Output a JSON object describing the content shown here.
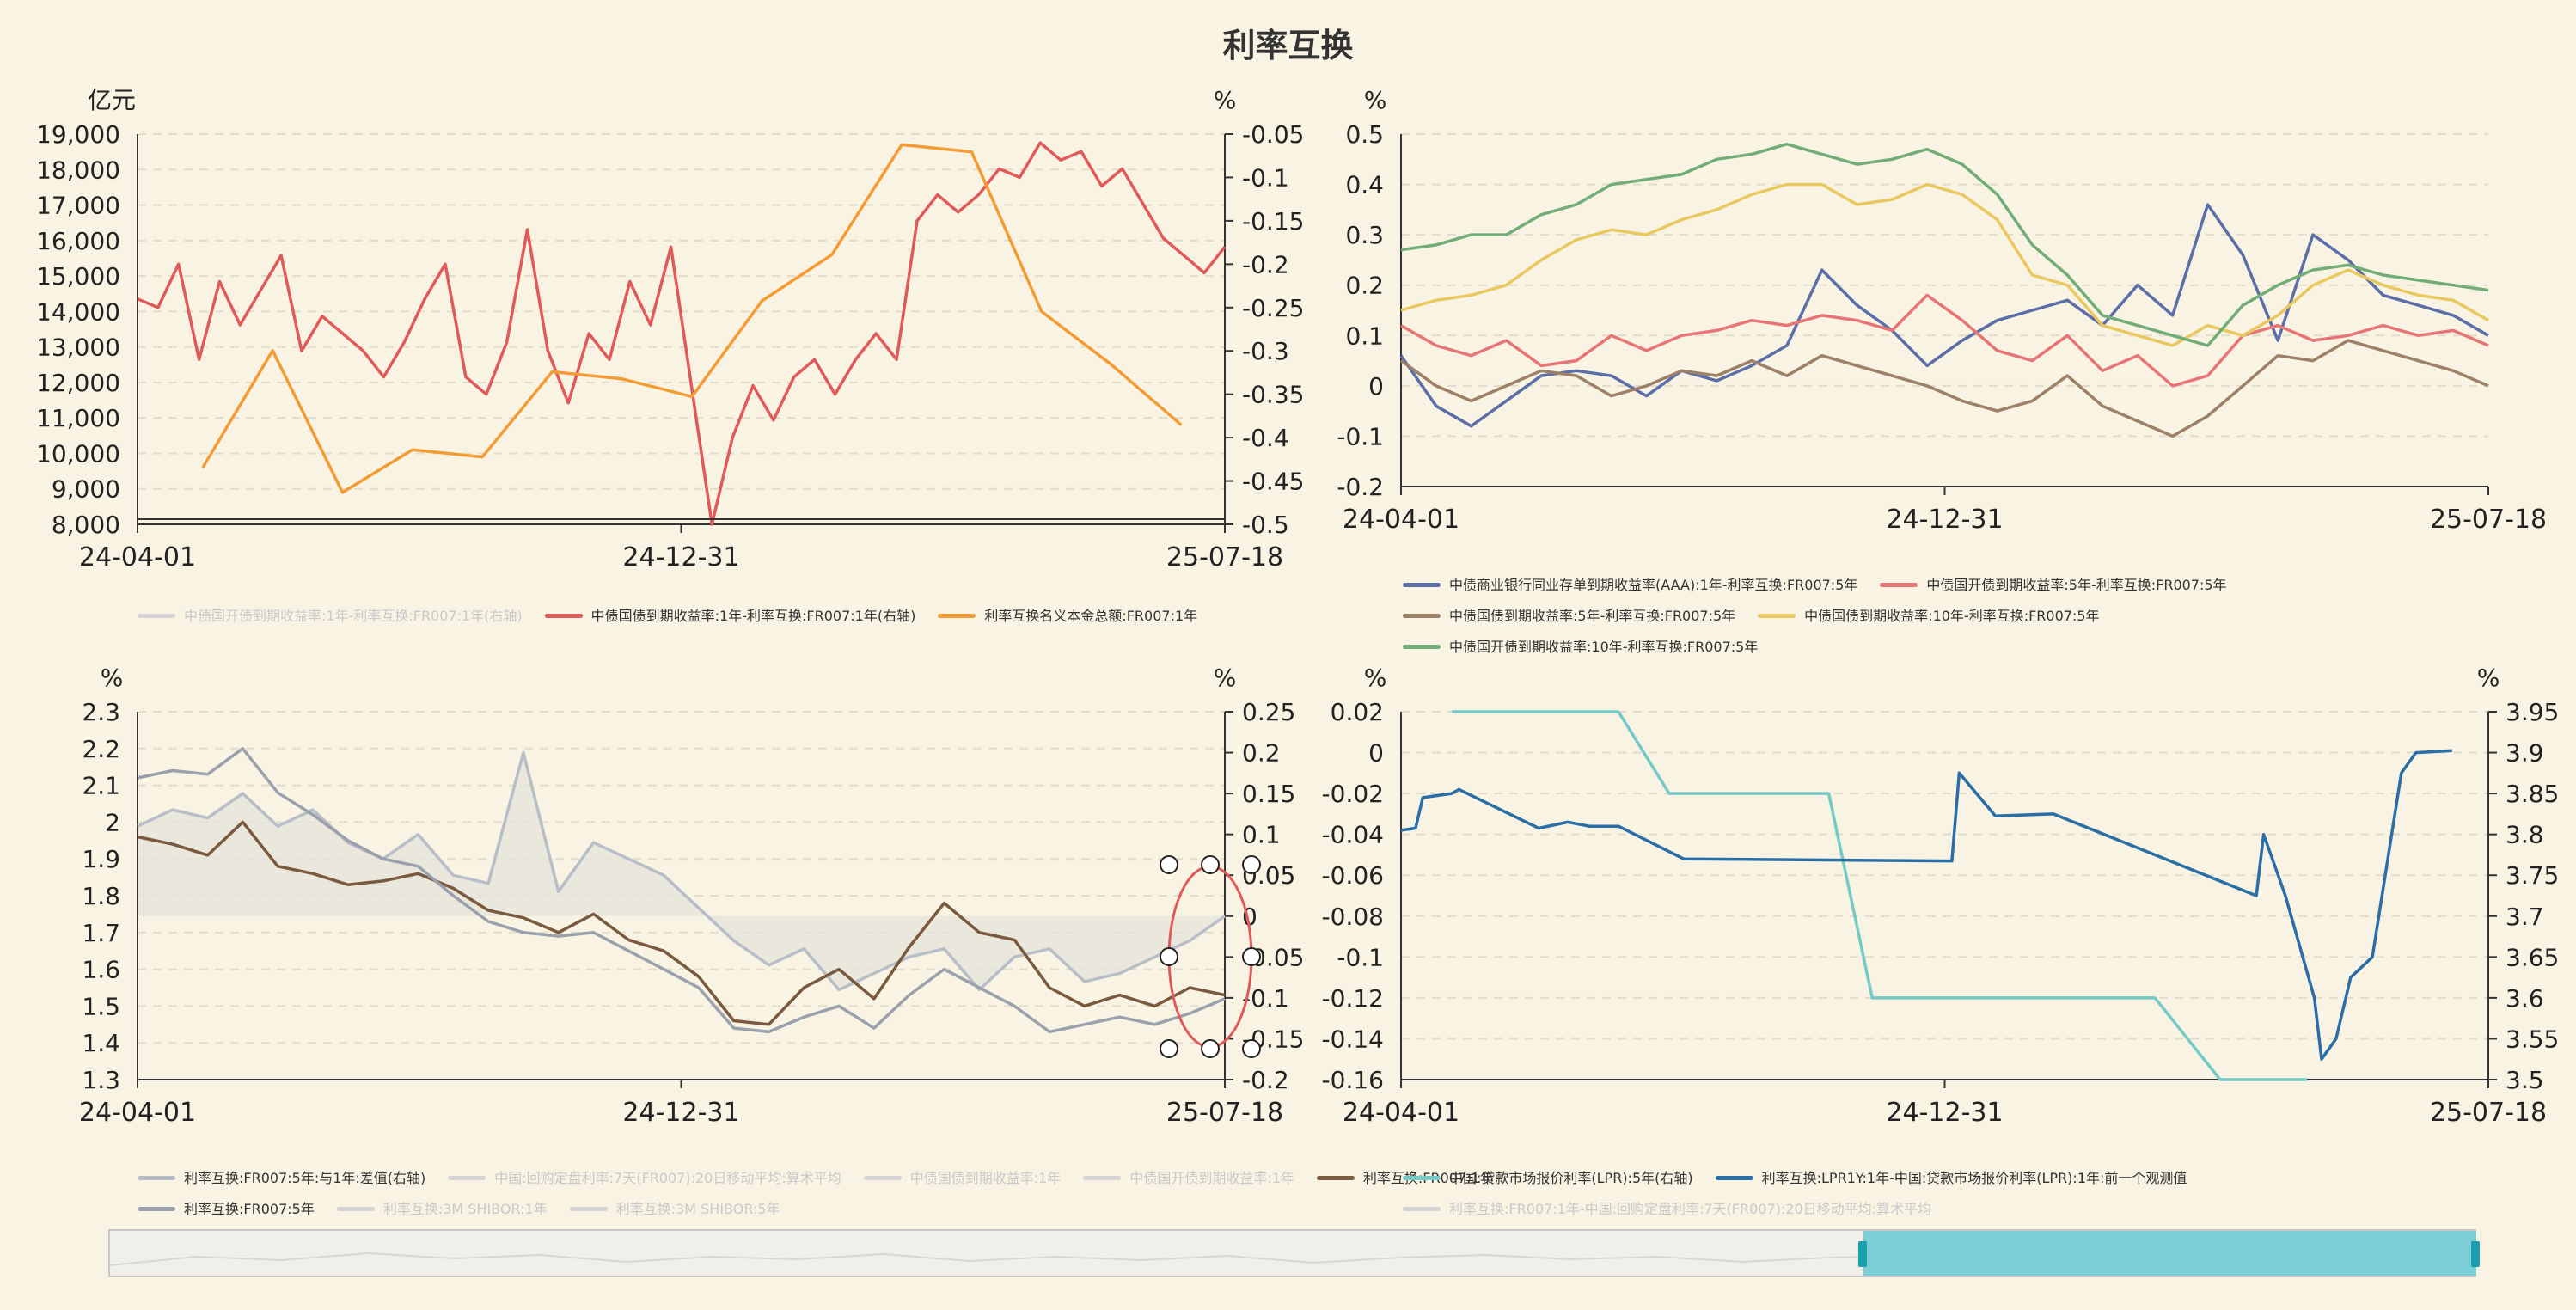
{
  "title": "利率互换",
  "dates": {
    "start": "24-04-01",
    "mid": "24-12-31",
    "end": "25-07-18"
  },
  "chart_data": [
    {
      "id": "swap-notional",
      "type": "line",
      "xlabels": [
        "24-04-01",
        "24-12-31",
        "25-07-18"
      ],
      "yleft": {
        "unit": "亿元",
        "ylim": [
          8000,
          19000
        ],
        "ticks": [
          "19,000",
          "18,000",
          "17,000",
          "16,000",
          "15,000",
          "14,000",
          "13,000",
          "12,000",
          "11,000",
          "10,000",
          "9,000",
          "8,000"
        ]
      },
      "yright": {
        "unit": "%",
        "ylim": [
          -0.5,
          -0.05
        ],
        "ticks": [
          "-0.05",
          "-0.1",
          "-0.15",
          "-0.2",
          "-0.25",
          "-0.3",
          "-0.35",
          "-0.4",
          "-0.45",
          "-0.5"
        ]
      },
      "series": [
        {
          "name": "中债国开债到期收益率:1年-利率互换:FR007:1年(右轴)",
          "color": "#cccccc",
          "visible": false,
          "axis": "right",
          "values": []
        },
        {
          "name": "中债国债到期收益率:1年-利率互换:FR007:1年(右轴)",
          "color": "#e05a5a",
          "visible": true,
          "axis": "right",
          "values": [
            -0.24,
            -0.25,
            -0.2,
            -0.31,
            -0.22,
            -0.27,
            -0.23,
            -0.19,
            -0.3,
            -0.26,
            -0.28,
            -0.3,
            -0.33,
            -0.29,
            -0.24,
            -0.2,
            -0.33,
            -0.35,
            -0.29,
            -0.16,
            -0.3,
            -0.36,
            -0.28,
            -0.31,
            -0.22,
            -0.27,
            -0.18,
            -0.34,
            -0.5,
            -0.4,
            -0.34,
            -0.38,
            -0.33,
            -0.31,
            -0.35,
            -0.31,
            -0.28,
            -0.31,
            -0.15,
            -0.12,
            -0.14,
            -0.12,
            -0.09,
            -0.1,
            -0.06,
            -0.08,
            -0.07,
            -0.11,
            -0.09,
            -0.13,
            -0.17,
            -0.19,
            -0.21,
            -0.18
          ]
        },
        {
          "name": "利率互换名义本金总额:FR007:1年",
          "color": "#f39c35",
          "visible": true,
          "axis": "left",
          "values": [
            9600,
            12900,
            8900,
            10100,
            9900,
            12300,
            12100,
            11600,
            14300,
            15600,
            18700,
            18500,
            14000,
            12500,
            10800
          ]
        }
      ]
    },
    {
      "id": "long-spreads",
      "type": "line",
      "xlabels": [
        "24-04-01",
        "24-12-31",
        "25-07-18"
      ],
      "yleft": {
        "unit": "%",
        "ylim": [
          -0.2,
          0.5
        ],
        "ticks": [
          "0.5",
          "0.4",
          "0.3",
          "0.2",
          "0.1",
          "0",
          "-0.1",
          "-0.2"
        ]
      },
      "series": [
        {
          "name": "中债商业银行同业存单到期收益率(AAA):1年-利率互换:FR007:5年",
          "color": "#5b6ea8",
          "visible": true,
          "values": [
            0.06,
            -0.04,
            -0.08,
            -0.03,
            0.02,
            0.03,
            0.02,
            -0.02,
            0.03,
            0.01,
            0.04,
            0.08,
            0.23,
            0.16,
            0.11,
            0.04,
            0.09,
            0.13,
            0.15,
            0.17,
            0.12,
            0.2,
            0.14,
            0.36,
            0.26,
            0.09,
            0.3,
            0.25,
            0.18,
            0.16,
            0.14,
            0.1
          ]
        },
        {
          "name": "中债国开债到期收益率:5年-利率互换:FR007:5年",
          "color": "#e87575",
          "visible": true,
          "values": [
            0.12,
            0.08,
            0.06,
            0.09,
            0.04,
            0.05,
            0.1,
            0.07,
            0.1,
            0.11,
            0.13,
            0.12,
            0.14,
            0.13,
            0.11,
            0.18,
            0.13,
            0.07,
            0.05,
            0.1,
            0.03,
            0.06,
            0.0,
            0.02,
            0.1,
            0.12,
            0.09,
            0.1,
            0.12,
            0.1,
            0.11,
            0.08
          ]
        },
        {
          "name": "中债国债到期收益率:5年-利率互换:FR007:5年",
          "color": "#9c8068",
          "visible": true,
          "values": [
            0.05,
            0.0,
            -0.03,
            0.0,
            0.03,
            0.02,
            -0.02,
            0.0,
            0.03,
            0.02,
            0.05,
            0.02,
            0.06,
            0.04,
            0.02,
            0.0,
            -0.03,
            -0.05,
            -0.03,
            0.02,
            -0.04,
            -0.07,
            -0.1,
            -0.06,
            0.0,
            0.06,
            0.05,
            0.09,
            0.07,
            0.05,
            0.03,
            0.0
          ]
        },
        {
          "name": "中债国债到期收益率:10年-利率互换:FR007:5年",
          "color": "#e9c95f",
          "visible": true,
          "values": [
            0.15,
            0.17,
            0.18,
            0.2,
            0.25,
            0.29,
            0.31,
            0.3,
            0.33,
            0.35,
            0.38,
            0.4,
            0.4,
            0.36,
            0.37,
            0.4,
            0.38,
            0.33,
            0.22,
            0.2,
            0.12,
            0.1,
            0.08,
            0.12,
            0.1,
            0.14,
            0.2,
            0.23,
            0.2,
            0.18,
            0.17,
            0.13
          ]
        },
        {
          "name": "中债国开债到期收益率:10年-利率互换:FR007:5年",
          "color": "#72ad78",
          "visible": true,
          "values": [
            0.27,
            0.28,
            0.3,
            0.3,
            0.34,
            0.36,
            0.4,
            0.41,
            0.42,
            0.45,
            0.46,
            0.48,
            0.46,
            0.44,
            0.45,
            0.47,
            0.44,
            0.38,
            0.28,
            0.22,
            0.14,
            0.12,
            0.1,
            0.08,
            0.16,
            0.2,
            0.23,
            0.24,
            0.22,
            0.21,
            0.2,
            0.19
          ]
        }
      ]
    },
    {
      "id": "swap-curve",
      "type": "line",
      "xlabels": [
        "24-04-01",
        "24-12-31",
        "25-07-18"
      ],
      "yleft": {
        "unit": "%",
        "ylim": [
          1.3,
          2.3
        ],
        "ticks": [
          "2.3",
          "2.2",
          "2.1",
          "2",
          "1.9",
          "1.8",
          "1.7",
          "1.6",
          "1.5",
          "1.4",
          "1.3"
        ]
      },
      "yright": {
        "unit": "%",
        "ylim": [
          -0.2,
          0.25
        ],
        "ticks": [
          "0.25",
          "0.2",
          "0.15",
          "0.1",
          "0.05",
          "0",
          "-0.05",
          "-0.1",
          "-0.15",
          "-0.2"
        ]
      },
      "series": [
        {
          "name": "利率互换:FR007:5年:与1年:差值(右轴)",
          "color": "#b8bec8",
          "visible": true,
          "axis": "right",
          "values": [
            0.11,
            0.13,
            0.12,
            0.15,
            0.11,
            0.13,
            0.09,
            0.07,
            0.1,
            0.05,
            0.04,
            0.2,
            0.03,
            0.09,
            0.07,
            0.05,
            0.01,
            -0.03,
            -0.06,
            -0.04,
            -0.09,
            -0.07,
            -0.05,
            -0.04,
            -0.09,
            -0.05,
            -0.04,
            -0.08,
            -0.07,
            -0.05,
            -0.03,
            0.0
          ]
        },
        {
          "name": "中国:回购定盘利率:7天(FR007):20日移动平均:算术平均",
          "color": "#cccccc",
          "visible": false,
          "axis": "left",
          "values": []
        },
        {
          "name": "中债国债到期收益率:1年",
          "color": "#cccccc",
          "visible": false,
          "axis": "left",
          "values": []
        },
        {
          "name": "中债国开债到期收益率:1年",
          "color": "#cccccc",
          "visible": false,
          "axis": "left",
          "values": []
        },
        {
          "name": "利率互换:FR007:1年",
          "color": "#7a5a3f",
          "visible": true,
          "axis": "left",
          "values": [
            1.96,
            1.94,
            1.91,
            2.0,
            1.88,
            1.86,
            1.83,
            1.84,
            1.86,
            1.82,
            1.76,
            1.74,
            1.7,
            1.75,
            1.68,
            1.65,
            1.58,
            1.46,
            1.45,
            1.55,
            1.6,
            1.52,
            1.66,
            1.78,
            1.7,
            1.68,
            1.55,
            1.5,
            1.53,
            1.5,
            1.55,
            1.53
          ]
        },
        {
          "name": "利率互换:FR007:5年",
          "color": "#9aa1ac",
          "visible": true,
          "axis": "left",
          "values": [
            2.12,
            2.14,
            2.13,
            2.2,
            2.08,
            2.02,
            1.95,
            1.9,
            1.88,
            1.8,
            1.73,
            1.7,
            1.69,
            1.7,
            1.65,
            1.6,
            1.55,
            1.44,
            1.43,
            1.47,
            1.5,
            1.44,
            1.53,
            1.6,
            1.55,
            1.5,
            1.43,
            1.45,
            1.47,
            1.45,
            1.48,
            1.52
          ]
        },
        {
          "name": "利率互换:3M SHIBOR:1年",
          "color": "#cccccc",
          "visible": false,
          "axis": "left",
          "values": []
        },
        {
          "name": "利率互换:3M SHIBOR:5年",
          "color": "#cccccc",
          "visible": false,
          "axis": "left",
          "values": []
        }
      ]
    },
    {
      "id": "lpr-swap",
      "type": "line",
      "xlabels": [
        "24-04-01",
        "24-12-31",
        "25-07-18"
      ],
      "yleft": {
        "unit": "%",
        "ylim": [
          -0.16,
          0.02
        ],
        "ticks": [
          "0.02",
          "0",
          "-0.02",
          "-0.04",
          "-0.06",
          "-0.08",
          "-0.1",
          "-0.12",
          "-0.14",
          "-0.16"
        ]
      },
      "yright": {
        "unit": "%",
        "ylim": [
          3.5,
          3.95
        ],
        "ticks": [
          "3.95",
          "3.9",
          "3.85",
          "3.8",
          "3.75",
          "3.7",
          "3.65",
          "3.6",
          "3.55",
          "3.5"
        ]
      },
      "series": [
        {
          "name": "中国:贷款市场报价利率(LPR):5年(右轴)",
          "color": "#75c9c7",
          "visible": true,
          "axis": "right",
          "x": [
            0.07,
            0.3,
            0.37,
            0.59,
            0.65,
            0.91,
            0.95,
            1.0,
            1.04,
            1.13,
            1.25
          ],
          "values": [
            3.95,
            3.95,
            3.85,
            3.85,
            3.6,
            3.6,
            3.6,
            3.6,
            3.6,
            3.5,
            3.5
          ]
        },
        {
          "name": "利率互换:LPR1Y:1年-中国:贷款市场报价利率(LPR):1年:前一个观测值",
          "color": "#2a6ea6",
          "visible": true,
          "axis": "left",
          "x": [
            0.0,
            0.02,
            0.03,
            0.07,
            0.08,
            0.19,
            0.23,
            0.26,
            0.3,
            0.39,
            0.76,
            0.77,
            0.82,
            0.9,
            1.18,
            1.19,
            1.22,
            1.26,
            1.27,
            1.29,
            1.31,
            1.34,
            1.38,
            1.4,
            1.45
          ],
          "values": [
            -0.038,
            -0.037,
            -0.022,
            -0.02,
            -0.018,
            -0.037,
            -0.034,
            -0.036,
            -0.036,
            -0.052,
            -0.053,
            -0.01,
            -0.031,
            -0.03,
            -0.07,
            -0.04,
            -0.07,
            -0.12,
            -0.15,
            -0.14,
            -0.11,
            -0.1,
            -0.01,
            0.0,
            0.001
          ]
        },
        {
          "name": "利率互换:FR007:1年-中国:回购定盘利率:7天(FR007):20日移动平均:算术平均",
          "color": "#cccccc",
          "visible": false,
          "axis": "left",
          "values": []
        }
      ]
    }
  ]
}
